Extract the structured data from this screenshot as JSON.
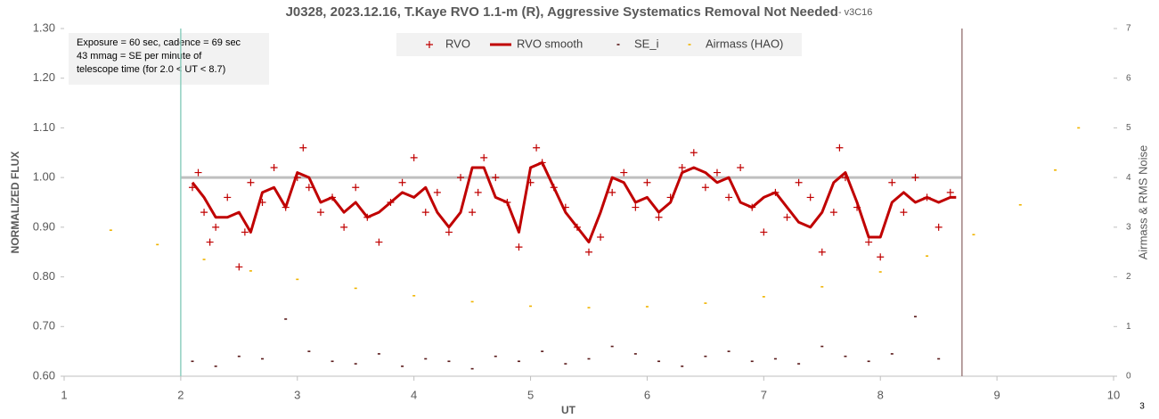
{
  "chart_data": {
    "type": "scatter",
    "title": "J0328, 2023.12.16, T.Kaye RVO 1.1-m (R), Aggressive Systematics Removal Not Needed",
    "subtitle": "- v3C16",
    "x_label": "UT",
    "y_label": "NORMALIZED FLUX",
    "y2_label": "Airmass & RMS Noise",
    "annotation": [
      "Exposure = 60 sec, cadence = 69 sec",
      "43 mmag = SE per minute of",
      "telescope time  (for 2.0 < UT < 8.7)"
    ],
    "page_number": "3",
    "xlim": [
      1,
      10
    ],
    "xticks": [
      1,
      2,
      3,
      4,
      5,
      6,
      7,
      8,
      9,
      10
    ],
    "ylim": [
      0.6,
      1.3
    ],
    "yticks": [
      {
        "value": 0.6,
        "label": "0.60"
      },
      {
        "value": 0.7,
        "label": "0.70"
      },
      {
        "value": 0.8,
        "label": "0.80"
      },
      {
        "value": 0.9,
        "label": "0.90"
      },
      {
        "value": 1.0,
        "label": "1.00"
      },
      {
        "value": 1.1,
        "label": "1.10"
      },
      {
        "value": 1.2,
        "label": "1.20"
      },
      {
        "value": 1.3,
        "label": "1.30"
      }
    ],
    "y2lim": [
      0,
      7
    ],
    "y2ticks": [
      0,
      1,
      2,
      3,
      4,
      5,
      6,
      7
    ],
    "reference_lines": {
      "vertical": [
        2,
        8.7
      ],
      "horizontal": 1.0
    },
    "legend": "top",
    "series": [
      {
        "name": "RVO",
        "color": "#c00000",
        "marker": "plus",
        "x": [
          2.1,
          2.15,
          2.2,
          2.25,
          2.3,
          2.4,
          2.5,
          2.55,
          2.6,
          2.7,
          2.8,
          2.9,
          3.0,
          3.05,
          3.1,
          3.2,
          3.3,
          3.4,
          3.5,
          3.6,
          3.7,
          3.8,
          3.9,
          4.0,
          4.1,
          4.2,
          4.3,
          4.4,
          4.5,
          4.55,
          4.6,
          4.7,
          4.8,
          4.9,
          5.0,
          5.05,
          5.1,
          5.2,
          5.3,
          5.4,
          5.5,
          5.6,
          5.7,
          5.8,
          5.9,
          6.0,
          6.1,
          6.2,
          6.3,
          6.4,
          6.5,
          6.6,
          6.7,
          6.8,
          6.9,
          7.0,
          7.1,
          7.2,
          7.3,
          7.4,
          7.5,
          7.6,
          7.65,
          7.7,
          7.8,
          7.9,
          8.0,
          8.1,
          8.2,
          8.3,
          8.4,
          8.5,
          8.6
        ],
        "values": [
          0.98,
          1.01,
          0.93,
          0.87,
          0.9,
          0.96,
          0.82,
          0.89,
          0.99,
          0.95,
          1.02,
          0.94,
          1.0,
          1.06,
          0.98,
          0.93,
          0.96,
          0.9,
          0.98,
          0.92,
          0.87,
          0.95,
          0.99,
          1.04,
          0.93,
          0.97,
          0.89,
          1.0,
          0.93,
          0.97,
          1.04,
          1.0,
          0.95,
          0.86,
          0.99,
          1.06,
          1.03,
          0.98,
          0.94,
          0.9,
          0.85,
          0.88,
          0.97,
          1.01,
          0.94,
          0.99,
          0.92,
          0.96,
          1.02,
          1.05,
          0.98,
          1.01,
          0.96,
          1.02,
          0.94,
          0.89,
          0.97,
          0.92,
          0.99,
          0.96,
          0.85,
          0.93,
          1.06,
          1.0,
          0.94,
          0.87,
          0.84,
          0.99,
          0.93,
          1.0,
          0.96,
          0.9,
          0.97
        ]
      },
      {
        "name": "RVO smooth",
        "color": "#c00000",
        "marker": "line",
        "x": [
          2.1,
          2.2,
          2.3,
          2.4,
          2.5,
          2.6,
          2.7,
          2.8,
          2.9,
          3.0,
          3.1,
          3.2,
          3.3,
          3.4,
          3.5,
          3.6,
          3.7,
          3.8,
          3.9,
          4.0,
          4.1,
          4.2,
          4.3,
          4.4,
          4.5,
          4.6,
          4.7,
          4.8,
          4.9,
          5.0,
          5.1,
          5.2,
          5.3,
          5.4,
          5.5,
          5.6,
          5.7,
          5.8,
          5.9,
          6.0,
          6.1,
          6.2,
          6.3,
          6.4,
          6.5,
          6.6,
          6.7,
          6.8,
          6.9,
          7.0,
          7.1,
          7.2,
          7.3,
          7.4,
          7.5,
          7.6,
          7.7,
          7.8,
          7.9,
          8.0,
          8.1,
          8.2,
          8.3,
          8.4,
          8.5,
          8.6,
          8.65
        ],
        "values": [
          0.99,
          0.96,
          0.92,
          0.92,
          0.93,
          0.89,
          0.97,
          0.98,
          0.94,
          1.01,
          1.0,
          0.95,
          0.96,
          0.93,
          0.95,
          0.92,
          0.93,
          0.95,
          0.97,
          0.96,
          0.98,
          0.93,
          0.9,
          0.93,
          1.02,
          1.02,
          0.96,
          0.95,
          0.89,
          1.02,
          1.03,
          0.98,
          0.93,
          0.9,
          0.87,
          0.93,
          1.0,
          0.99,
          0.95,
          0.96,
          0.93,
          0.95,
          1.01,
          1.02,
          1.01,
          0.99,
          1.0,
          0.95,
          0.94,
          0.96,
          0.97,
          0.94,
          0.91,
          0.9,
          0.93,
          0.99,
          1.01,
          0.95,
          0.88,
          0.88,
          0.95,
          0.97,
          0.95,
          0.96,
          0.95,
          0.96,
          0.96
        ]
      },
      {
        "name": "SE_i",
        "color": "#5a1a1a",
        "marker": "dash",
        "axis": "y2",
        "x": [
          2.1,
          2.3,
          2.5,
          2.7,
          2.9,
          3.1,
          3.3,
          3.5,
          3.7,
          3.9,
          4.1,
          4.3,
          4.5,
          4.7,
          4.9,
          5.1,
          5.3,
          5.5,
          5.7,
          5.9,
          6.1,
          6.3,
          6.5,
          6.7,
          6.9,
          7.1,
          7.3,
          7.5,
          7.7,
          7.9,
          8.1,
          8.3,
          8.5
        ],
        "values": [
          0.3,
          0.2,
          0.4,
          0.35,
          1.15,
          0.5,
          0.3,
          0.25,
          0.45,
          0.2,
          0.35,
          0.3,
          0.15,
          0.4,
          0.3,
          0.5,
          0.25,
          0.35,
          0.6,
          0.45,
          0.3,
          0.2,
          0.4,
          0.5,
          0.3,
          0.35,
          0.25,
          0.6,
          0.4,
          0.3,
          0.45,
          1.2,
          0.35
        ]
      },
      {
        "name": "Airmass (HAO)",
        "color": "#f0b400",
        "marker": "dash",
        "axis": "y2",
        "x": [
          1.4,
          1.8,
          2.2,
          2.6,
          3.0,
          3.5,
          4.0,
          4.5,
          5.0,
          5.5,
          6.0,
          6.5,
          7.0,
          7.5,
          8.0,
          8.4,
          8.8,
          9.2,
          9.5,
          9.7
        ],
        "values": [
          2.94,
          2.65,
          2.35,
          2.12,
          1.95,
          1.77,
          1.62,
          1.5,
          1.41,
          1.38,
          1.4,
          1.47,
          1.6,
          1.8,
          2.1,
          2.42,
          2.85,
          3.45,
          4.15,
          5.0
        ]
      }
    ]
  }
}
